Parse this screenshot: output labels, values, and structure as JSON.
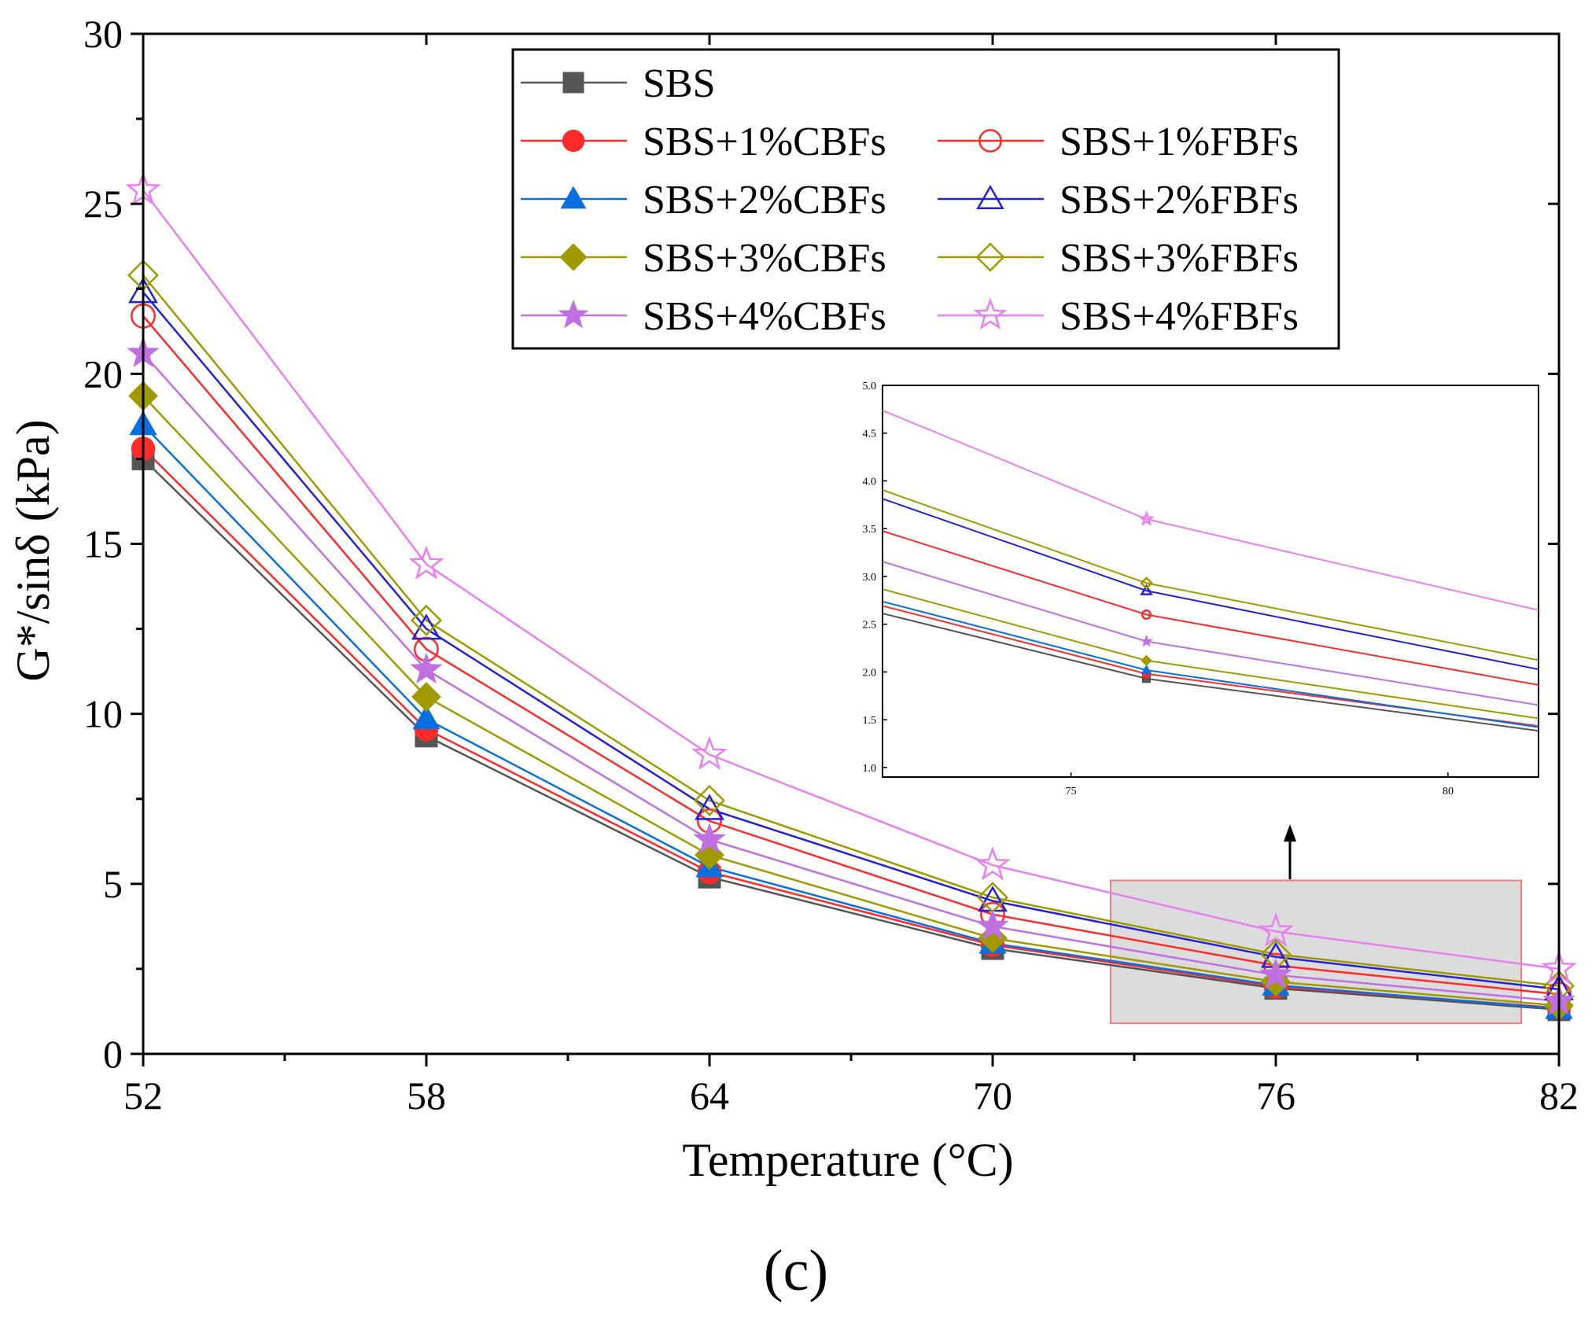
{
  "panel_label": "(c)",
  "chart_data": {
    "type": "line",
    "xlabel": "Temperature (°C)",
    "ylabel": "G*/sinδ (kPa)",
    "x": [
      52,
      58,
      64,
      70,
      76,
      82
    ],
    "xlim": [
      52,
      82
    ],
    "ylim": [
      0,
      30
    ],
    "xticks": [
      52,
      58,
      64,
      70,
      76,
      82
    ],
    "yticks": [
      0,
      5,
      10,
      15,
      20,
      25,
      30
    ],
    "grid": false,
    "legend_placement": "top-center",
    "series": [
      {
        "name": "SBS",
        "color": "#555555",
        "marker": "square",
        "filled": true,
        "values": [
          17.5,
          9.35,
          5.2,
          3.1,
          1.93,
          1.3
        ]
      },
      {
        "name": "SBS+1%CBFs",
        "color": "#ff2a2a",
        "marker": "circle",
        "filled": true,
        "values": [
          17.8,
          9.55,
          5.35,
          3.2,
          1.98,
          1.35
        ]
      },
      {
        "name": "SBS+1%FBFs",
        "color": "#ff2a2a",
        "marker": "circle",
        "filled": false,
        "values": [
          21.7,
          11.9,
          6.85,
          4.1,
          2.6,
          1.75
        ]
      },
      {
        "name": "SBS+2%CBFs",
        "color": "#0a6fe0",
        "marker": "triangle",
        "filled": true,
        "values": [
          18.5,
          9.85,
          5.5,
          3.25,
          2.02,
          1.33
        ]
      },
      {
        "name": "SBS+2%FBFs",
        "color": "#2222d8",
        "marker": "triangle",
        "filled": false,
        "values": [
          22.4,
          12.5,
          7.2,
          4.5,
          2.85,
          1.9
        ]
      },
      {
        "name": "SBS+3%CBFs",
        "color": "#a09a00",
        "marker": "diamond",
        "filled": true,
        "values": [
          19.35,
          10.5,
          5.85,
          3.4,
          2.12,
          1.42
        ]
      },
      {
        "name": "SBS+3%FBFs",
        "color": "#a09a00",
        "marker": "diamond",
        "filled": false,
        "values": [
          22.9,
          12.75,
          7.45,
          4.6,
          2.93,
          2.0
        ]
      },
      {
        "name": "SBS+4%CBFs",
        "color": "#c070e0",
        "marker": "star",
        "filled": true,
        "values": [
          20.6,
          11.3,
          6.3,
          3.75,
          2.32,
          1.55
        ]
      },
      {
        "name": "SBS+4%FBFs",
        "color": "#e880f0",
        "marker": "star",
        "filled": false,
        "values": [
          25.4,
          14.4,
          8.8,
          5.55,
          3.6,
          2.5
        ]
      }
    ],
    "inset": {
      "xlim": [
        72.5,
        81.2
      ],
      "ylim": [
        0.9,
        5.0
      ],
      "xticks": [
        75,
        80
      ],
      "yticks": [
        "1.0",
        "1.5",
        "2.0",
        "2.5",
        "3.0",
        "3.5",
        "4.0",
        "4.5",
        "5.0"
      ],
      "highlight_region": {
        "x": [
          72.5,
          81.2
        ],
        "y": [
          0.9,
          5.1
        ]
      }
    }
  }
}
